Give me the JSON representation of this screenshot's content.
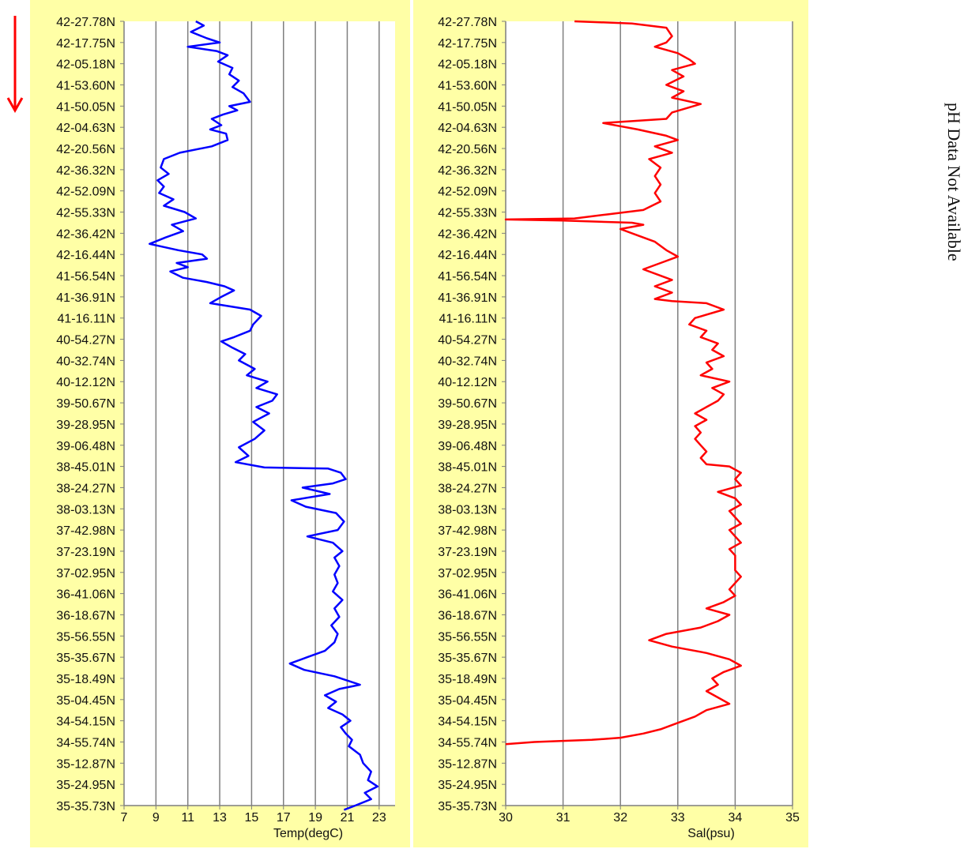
{
  "side_note": "pH Data Not Available",
  "chart_data": [
    {
      "type": "line",
      "xlabel": "Temp(degC)",
      "ylabel": "",
      "xlim": [
        7,
        24
      ],
      "xticks": [
        7,
        9,
        11,
        13,
        15,
        17,
        19,
        21,
        23
      ],
      "grid": "vertical",
      "color": "#0000ff",
      "categories": [
        "42-27.78N",
        "42-17.75N",
        "42-05.18N",
        "41-53.60N",
        "41-50.05N",
        "42-04.63N",
        "42-20.56N",
        "42-36.32N",
        "42-52.09N",
        "42-55.33N",
        "42-36.42N",
        "42-16.44N",
        "41-56.54N",
        "41-36.91N",
        "41-16.11N",
        "40-54.27N",
        "40-32.74N",
        "40-12.12N",
        "39-50.67N",
        "39-28.95N",
        "39-06.48N",
        "38-45.01N",
        "38-24.27N",
        "38-03.13N",
        "37-42.98N",
        "37-23.19N",
        "37-02.95N",
        "36-41.06N",
        "36-18.67N",
        "35-56.55N",
        "35-35.67N",
        "35-18.49N",
        "35-04.45N",
        "34-54.15N",
        "34-55.74N",
        "35-12.87N",
        "35-24.95N",
        "35-35.73N"
      ],
      "series": [
        {
          "values": [
            [
              11.5,
              0
            ],
            [
              12.0,
              0.2
            ],
            [
              11.2,
              0.5
            ],
            [
              12.2,
              0.8
            ],
            [
              13.0,
              1.0
            ],
            [
              11.0,
              1.2
            ],
            [
              12.8,
              1.4
            ],
            [
              13.5,
              1.6
            ],
            [
              12.9,
              1.9
            ],
            [
              13.8,
              2.2
            ],
            [
              13.6,
              2.5
            ],
            [
              14.2,
              2.8
            ],
            [
              13.8,
              3.1
            ],
            [
              14.5,
              3.4
            ],
            [
              14.9,
              3.8
            ],
            [
              13.6,
              4.0
            ],
            [
              14.1,
              4.2
            ],
            [
              13.2,
              4.4
            ],
            [
              12.5,
              4.6
            ],
            [
              13.1,
              4.9
            ],
            [
              12.4,
              5.1
            ],
            [
              13.4,
              5.3
            ],
            [
              13.5,
              5.6
            ],
            [
              12.5,
              5.9
            ],
            [
              10.5,
              6.2
            ],
            [
              9.5,
              6.5
            ],
            [
              9.3,
              6.9
            ],
            [
              9.8,
              7.2
            ],
            [
              9.1,
              7.5
            ],
            [
              9.5,
              7.8
            ],
            [
              9.2,
              8.1
            ],
            [
              10.1,
              8.4
            ],
            [
              9.5,
              8.7
            ],
            [
              10.8,
              9.0
            ],
            [
              11.5,
              9.3
            ],
            [
              10.0,
              9.6
            ],
            [
              10.7,
              9.9
            ],
            [
              9.6,
              10.2
            ],
            [
              8.6,
              10.5
            ],
            [
              10.4,
              10.8
            ],
            [
              11.9,
              11.0
            ],
            [
              12.2,
              11.2
            ],
            [
              10.3,
              11.4
            ],
            [
              11.0,
              11.6
            ],
            [
              9.9,
              11.8
            ],
            [
              10.7,
              12.1
            ],
            [
              12.2,
              12.3
            ],
            [
              13.3,
              12.5
            ],
            [
              13.9,
              12.7
            ],
            [
              13.1,
              13.0
            ],
            [
              12.4,
              13.3
            ],
            [
              14.9,
              13.6
            ],
            [
              15.6,
              13.9
            ],
            [
              15.1,
              14.3
            ],
            [
              14.9,
              14.6
            ],
            [
              13.9,
              14.9
            ],
            [
              13.1,
              15.1
            ],
            [
              13.8,
              15.4
            ],
            [
              14.6,
              15.7
            ],
            [
              14.2,
              16.0
            ],
            [
              15.2,
              16.4
            ],
            [
              14.7,
              16.7
            ],
            [
              16.0,
              17.0
            ],
            [
              15.3,
              17.3
            ],
            [
              16.6,
              17.6
            ],
            [
              16.3,
              17.9
            ],
            [
              15.3,
              18.2
            ],
            [
              16.1,
              18.5
            ],
            [
              15.1,
              18.9
            ],
            [
              15.8,
              19.3
            ],
            [
              15.2,
              19.7
            ],
            [
              14.2,
              20.1
            ],
            [
              14.8,
              20.5
            ],
            [
              14.0,
              20.8
            ],
            [
              15.8,
              21.05
            ],
            [
              19.8,
              21.1
            ],
            [
              20.6,
              21.3
            ],
            [
              20.9,
              21.6
            ],
            [
              20.1,
              21.8
            ],
            [
              18.2,
              22.0
            ],
            [
              19.9,
              22.3
            ],
            [
              17.5,
              22.6
            ],
            [
              18.4,
              22.9
            ],
            [
              20.3,
              23.2
            ],
            [
              20.8,
              23.6
            ],
            [
              20.4,
              24.0
            ],
            [
              18.5,
              24.3
            ],
            [
              20.1,
              24.6
            ],
            [
              20.7,
              25.0
            ],
            [
              20.2,
              25.3
            ],
            [
              20.5,
              25.7
            ],
            [
              20.2,
              26.1
            ],
            [
              20.4,
              26.5
            ],
            [
              20.1,
              26.9
            ],
            [
              20.7,
              27.3
            ],
            [
              20.2,
              27.7
            ],
            [
              20.5,
              28.1
            ],
            [
              20.0,
              28.5
            ],
            [
              20.4,
              28.9
            ],
            [
              20.2,
              29.3
            ],
            [
              19.6,
              29.7
            ],
            [
              18.5,
              30.0
            ],
            [
              17.4,
              30.3
            ],
            [
              18.3,
              30.6
            ],
            [
              20.2,
              30.9
            ],
            [
              21.0,
              31.1
            ],
            [
              21.8,
              31.3
            ],
            [
              20.5,
              31.5
            ],
            [
              19.6,
              31.8
            ],
            [
              20.3,
              32.1
            ],
            [
              19.8,
              32.4
            ],
            [
              20.7,
              32.7
            ],
            [
              21.2,
              33.0
            ],
            [
              20.6,
              33.3
            ],
            [
              20.9,
              33.6
            ],
            [
              21.3,
              33.9
            ],
            [
              21.1,
              34.2
            ],
            [
              21.8,
              34.6
            ],
            [
              22.0,
              35.0
            ],
            [
              22.5,
              35.4
            ],
            [
              22.3,
              35.8
            ],
            [
              22.9,
              36.1
            ],
            [
              22.1,
              36.4
            ],
            [
              22.5,
              36.7
            ],
            [
              21.5,
              37.0
            ],
            [
              20.8,
              37.2
            ]
          ]
        }
      ]
    },
    {
      "type": "line",
      "xlabel": "Sal(psu)",
      "ylabel": "",
      "xlim": [
        30,
        35
      ],
      "xticks": [
        30,
        31,
        32,
        33,
        34,
        35
      ],
      "grid": "vertical",
      "color": "#ff0000",
      "categories": [
        "42-27.78N",
        "42-17.75N",
        "42-05.18N",
        "41-53.60N",
        "41-50.05N",
        "42-04.63N",
        "42-20.56N",
        "42-36.32N",
        "42-52.09N",
        "42-55.33N",
        "42-36.42N",
        "42-16.44N",
        "41-56.54N",
        "41-36.91N",
        "41-16.11N",
        "40-54.27N",
        "40-32.74N",
        "40-12.12N",
        "39-50.67N",
        "39-28.95N",
        "39-06.48N",
        "38-45.01N",
        "38-24.27N",
        "38-03.13N",
        "37-42.98N",
        "37-23.19N",
        "37-02.95N",
        "36-41.06N",
        "36-18.67N",
        "35-56.55N",
        "35-35.67N",
        "35-18.49N",
        "35-04.45N",
        "34-54.15N",
        "34-55.74N",
        "35-12.87N",
        "35-24.95N",
        "35-35.73N"
      ],
      "series": [
        {
          "values": [
            [
              31.2,
              0
            ],
            [
              32.2,
              0.1
            ],
            [
              32.8,
              0.3
            ],
            [
              32.9,
              0.7
            ],
            [
              32.8,
              1.0
            ],
            [
              32.6,
              1.2
            ],
            [
              33.0,
              1.5
            ],
            [
              33.2,
              1.8
            ],
            [
              33.3,
              2.0
            ],
            [
              32.9,
              2.3
            ],
            [
              33.1,
              2.6
            ],
            [
              32.8,
              3.0
            ],
            [
              33.1,
              3.3
            ],
            [
              32.9,
              3.6
            ],
            [
              33.4,
              3.9
            ],
            [
              32.9,
              4.3
            ],
            [
              32.8,
              4.6
            ],
            [
              31.7,
              4.8
            ],
            [
              32.3,
              5.1
            ],
            [
              32.8,
              5.4
            ],
            [
              33.0,
              5.6
            ],
            [
              32.6,
              5.9
            ],
            [
              32.9,
              6.2
            ],
            [
              32.5,
              6.5
            ],
            [
              32.7,
              6.9
            ],
            [
              32.6,
              7.3
            ],
            [
              32.7,
              7.7
            ],
            [
              32.6,
              8.1
            ],
            [
              32.7,
              8.5
            ],
            [
              32.4,
              8.9
            ],
            [
              31.8,
              9.1
            ],
            [
              31.2,
              9.3
            ],
            [
              30.0,
              9.35
            ],
            [
              31.0,
              9.4
            ],
            [
              32.2,
              9.5
            ],
            [
              32.4,
              9.6
            ],
            [
              32.0,
              9.8
            ],
            [
              32.3,
              10.1
            ],
            [
              32.6,
              10.4
            ],
            [
              32.8,
              10.8
            ],
            [
              33.0,
              11.1
            ],
            [
              32.7,
              11.4
            ],
            [
              32.4,
              11.7
            ],
            [
              32.7,
              12.0
            ],
            [
              32.9,
              12.2
            ],
            [
              32.6,
              12.5
            ],
            [
              32.9,
              12.8
            ],
            [
              32.6,
              13.1
            ],
            [
              32.9,
              13.2
            ],
            [
              33.5,
              13.3
            ],
            [
              33.8,
              13.6
            ],
            [
              33.3,
              14.0
            ],
            [
              33.2,
              14.3
            ],
            [
              33.5,
              14.6
            ],
            [
              33.4,
              14.9
            ],
            [
              33.7,
              15.2
            ],
            [
              33.6,
              15.5
            ],
            [
              33.8,
              15.8
            ],
            [
              33.5,
              16.1
            ],
            [
              33.6,
              16.4
            ],
            [
              33.4,
              16.7
            ],
            [
              33.9,
              17.0
            ],
            [
              33.6,
              17.3
            ],
            [
              33.8,
              17.6
            ],
            [
              33.7,
              17.9
            ],
            [
              33.5,
              18.2
            ],
            [
              33.3,
              18.5
            ],
            [
              33.5,
              18.8
            ],
            [
              33.3,
              19.1
            ],
            [
              33.4,
              19.4
            ],
            [
              33.3,
              19.7
            ],
            [
              33.4,
              20.0
            ],
            [
              33.5,
              20.3
            ],
            [
              33.4,
              20.6
            ],
            [
              33.5,
              20.9
            ],
            [
              33.9,
              21.0
            ],
            [
              34.1,
              21.3
            ],
            [
              34.0,
              21.6
            ],
            [
              34.1,
              21.9
            ],
            [
              33.7,
              22.2
            ],
            [
              34.0,
              22.5
            ],
            [
              34.1,
              22.8
            ],
            [
              33.9,
              23.1
            ],
            [
              34.0,
              23.4
            ],
            [
              34.1,
              23.7
            ],
            [
              33.9,
              24.0
            ],
            [
              34.0,
              24.3
            ],
            [
              34.1,
              24.6
            ],
            [
              33.9,
              24.9
            ],
            [
              34.0,
              25.2
            ],
            [
              34.0,
              25.5
            ],
            [
              34.0,
              25.9
            ],
            [
              34.1,
              26.2
            ],
            [
              34.0,
              26.5
            ],
            [
              33.9,
              26.8
            ],
            [
              34.0,
              27.1
            ],
            [
              33.8,
              27.4
            ],
            [
              33.5,
              27.7
            ],
            [
              33.9,
              28.0
            ],
            [
              33.7,
              28.3
            ],
            [
              33.4,
              28.6
            ],
            [
              32.8,
              28.9
            ],
            [
              32.5,
              29.2
            ],
            [
              32.9,
              29.5
            ],
            [
              33.5,
              29.8
            ],
            [
              33.9,
              30.1
            ],
            [
              34.1,
              30.4
            ],
            [
              33.8,
              30.7
            ],
            [
              33.6,
              31.0
            ],
            [
              33.7,
              31.3
            ],
            [
              33.5,
              31.6
            ],
            [
              33.7,
              31.9
            ],
            [
              33.9,
              32.2
            ],
            [
              33.5,
              32.5
            ],
            [
              33.3,
              32.8
            ],
            [
              33.0,
              33.1
            ],
            [
              32.7,
              33.4
            ],
            [
              32.4,
              33.6
            ],
            [
              32.0,
              33.8
            ],
            [
              31.5,
              33.9
            ],
            [
              30.5,
              34.0
            ],
            [
              30.0,
              34.1
            ]
          ]
        }
      ]
    }
  ]
}
